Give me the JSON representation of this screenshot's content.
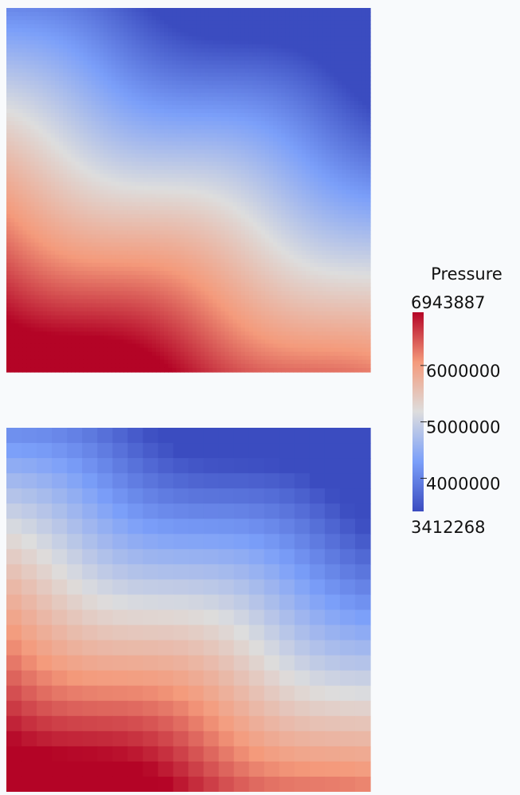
{
  "colorbar": {
    "title": "Pressure",
    "max": 6943887,
    "min": 3412268,
    "ticks": [
      4000000,
      5000000,
      6000000
    ]
  }
}
